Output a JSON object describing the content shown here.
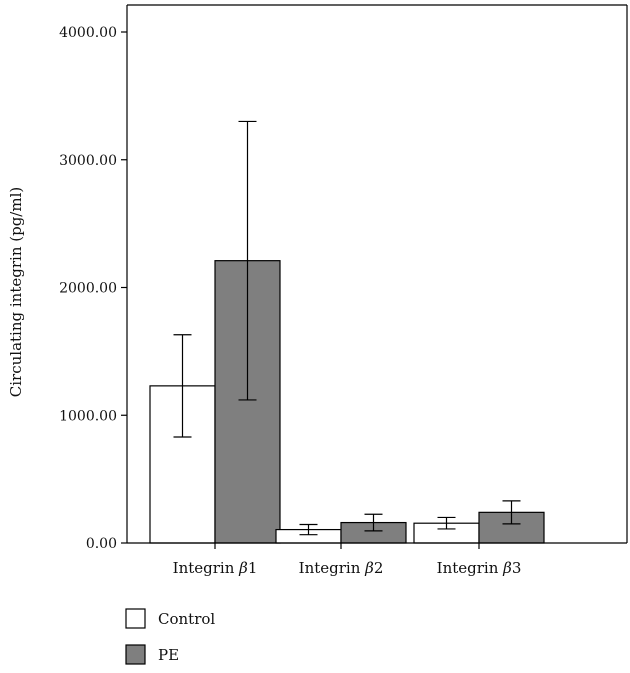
{
  "chart_data": {
    "type": "bar",
    "title": "",
    "xlabel": "",
    "ylabel": "Circulating integrin (pg/ml)",
    "ylim": [
      0,
      4000
    ],
    "y_ticks": [
      "0.00",
      "1000.00",
      "2000.00",
      "3000.00",
      "4000.00"
    ],
    "y_tick_values": [
      0,
      1000,
      2000,
      3000,
      4000
    ],
    "categories": [
      {
        "prefix": "Integrin ",
        "symbol": "β",
        "suffix": "1"
      },
      {
        "prefix": "Integrin ",
        "symbol": "β",
        "suffix": "2"
      },
      {
        "prefix": "Integrin ",
        "symbol": "β",
        "suffix": "3"
      }
    ],
    "series": [
      {
        "name": "Control",
        "color": "#ffffff",
        "values": [
          1230,
          105,
          155
        ],
        "error": [
          400,
          40,
          45
        ]
      },
      {
        "name": "PE",
        "color": "#7f7f7f",
        "values": [
          2210,
          160,
          240
        ],
        "error": [
          1090,
          65,
          90
        ]
      }
    ],
    "grid": false,
    "legend_position": "bottom-left"
  }
}
